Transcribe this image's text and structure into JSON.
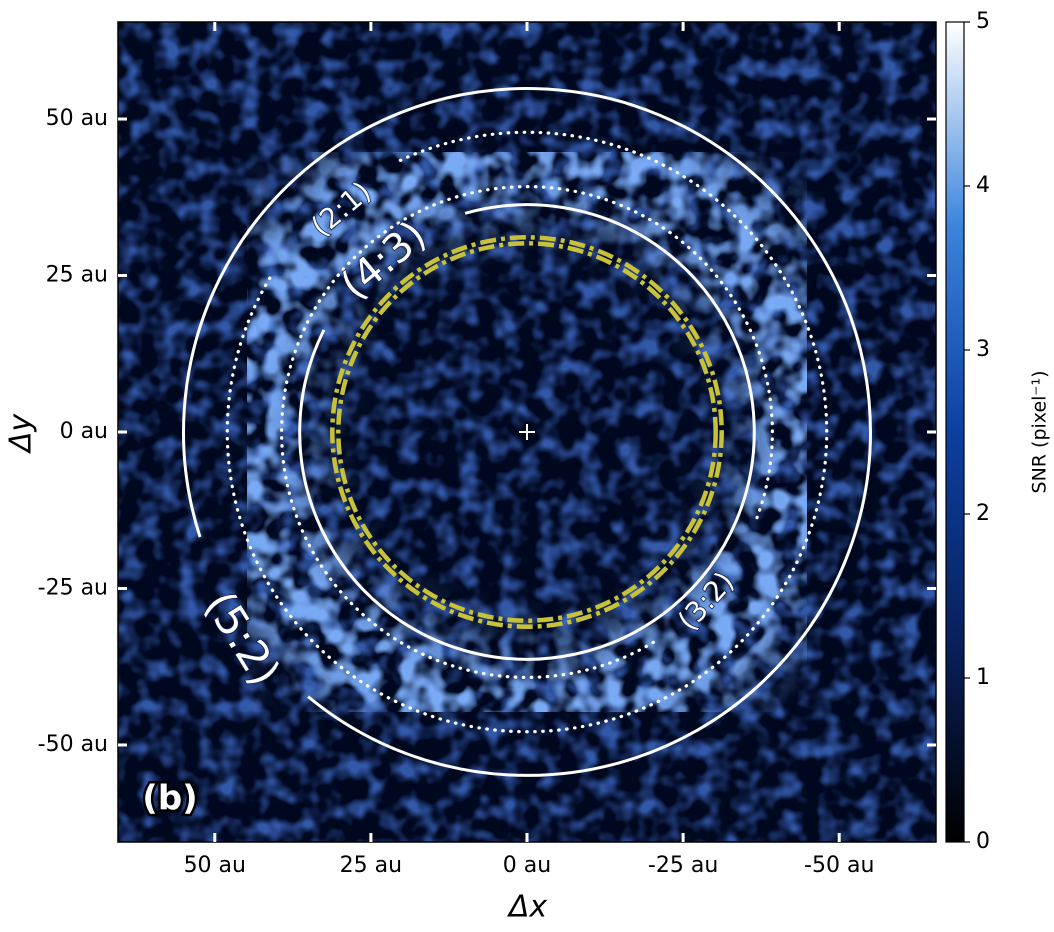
{
  "chart_data": {
    "type": "image",
    "xlabel": "Δx",
    "ylabel": "Δy",
    "xlim": [
      65.5,
      -65.5
    ],
    "ylim": [
      -65.5,
      65.5
    ],
    "xticks": [
      {
        "value": 50,
        "label": "50 au"
      },
      {
        "value": 25,
        "label": "25 au"
      },
      {
        "value": 0,
        "label": "0 au"
      },
      {
        "value": -25,
        "label": "-25 au"
      },
      {
        "value": -50,
        "label": "-50 au"
      }
    ],
    "yticks": [
      {
        "value": 50,
        "label": "50 au"
      },
      {
        "value": 25,
        "label": "25 au"
      },
      {
        "value": 0,
        "label": "0 au"
      },
      {
        "value": -25,
        "label": "-25 au"
      },
      {
        "value": -50,
        "label": "-50 au"
      }
    ],
    "colorbar": {
      "label": "SNR (pixel⁻¹)",
      "lim": [
        0,
        5
      ],
      "ticks": [
        0,
        1,
        2,
        3,
        4,
        5
      ],
      "colormap": [
        "#000000",
        "#08215e",
        "#0d3fa0",
        "#3b84dc",
        "#ffffff"
      ]
    },
    "rings": [
      {
        "label": "(5:2)",
        "radius": 55,
        "style": "solid",
        "color": "#ffffff"
      },
      {
        "label": "(2:1)",
        "radius": 48,
        "style": "dotted",
        "color": "#ffffff"
      },
      {
        "label": "(3:2)",
        "radius": 39.3,
        "style": "dotted",
        "color": "#ffffff"
      },
      {
        "label": "(4:3)",
        "radius": 36.4,
        "style": "solid",
        "color": "#ffffff"
      },
      {
        "radius": 30.7,
        "style": "dashdot",
        "color": "#c8c23a"
      }
    ],
    "star": {
      "x": 0,
      "y": 0
    },
    "panel_label": "(b)"
  }
}
